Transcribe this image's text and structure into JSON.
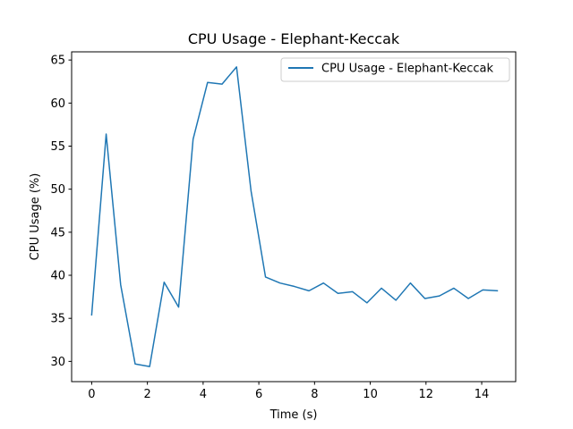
{
  "chart_data": {
    "type": "line",
    "title": "CPU Usage - Elephant-Keccak",
    "xlabel": "Time (s)",
    "ylabel": "CPU Usage (%)",
    "xlim": [
      -0.72,
      15.22
    ],
    "ylim": [
      27.65,
      65.95
    ],
    "xticks": [
      0,
      2,
      4,
      6,
      8,
      10,
      12,
      14
    ],
    "yticks": [
      30,
      35,
      40,
      45,
      50,
      55,
      60,
      65
    ],
    "grid": false,
    "legend": "upper right",
    "series": [
      {
        "name": "CPU Usage - Elephant-Keccak",
        "color": "#1f77b4",
        "x": [
          0.0,
          0.52,
          1.04,
          1.56,
          2.08,
          2.6,
          3.12,
          3.64,
          4.16,
          4.68,
          5.2,
          5.72,
          6.24,
          6.76,
          7.28,
          7.8,
          8.32,
          8.84,
          9.36,
          9.88,
          10.4,
          10.92,
          11.44,
          11.96,
          12.48,
          13.0,
          13.52,
          14.04,
          14.56
        ],
        "y": [
          35.4,
          56.4,
          38.9,
          29.7,
          29.4,
          39.2,
          36.3,
          55.8,
          62.4,
          62.2,
          64.2,
          49.8,
          39.8,
          39.1,
          38.7,
          38.2,
          39.1,
          37.9,
          38.1,
          36.8,
          38.5,
          37.1,
          39.1,
          37.3,
          37.6,
          38.5,
          37.3,
          38.3,
          38.2
        ]
      }
    ]
  }
}
